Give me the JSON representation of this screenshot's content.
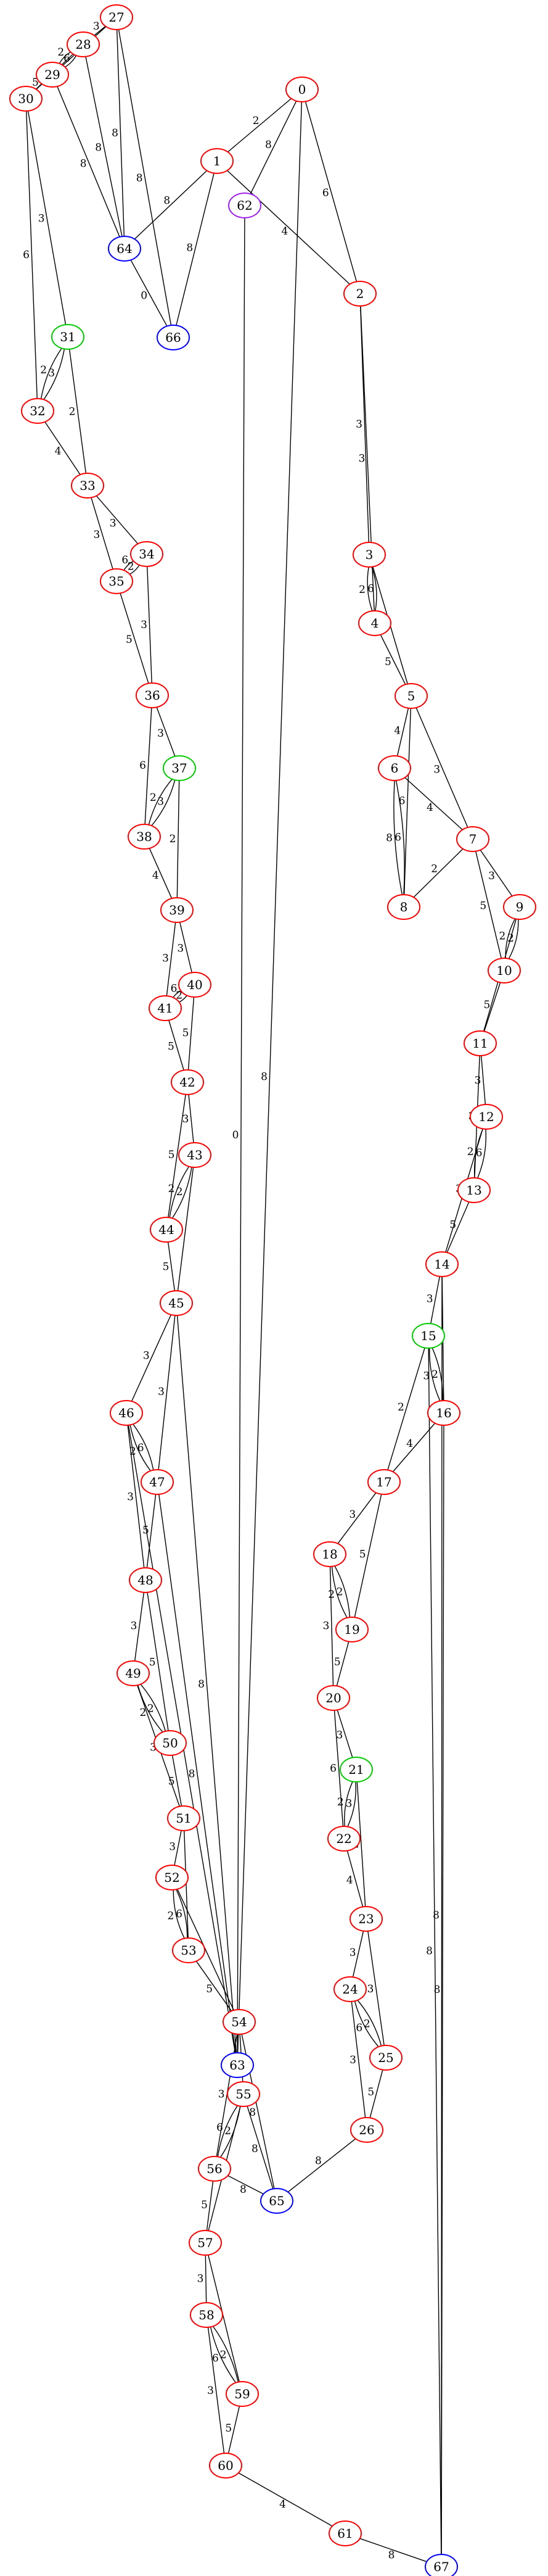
{
  "graph": {
    "colors": {
      "red": "#ff0000",
      "green": "#00cc00",
      "blue": "#0000ff",
      "purple": "#a020f0"
    },
    "nodes": [
      {
        "id": "0",
        "color": "red"
      },
      {
        "id": "1",
        "color": "red"
      },
      {
        "id": "2",
        "color": "red"
      },
      {
        "id": "3",
        "color": "red"
      },
      {
        "id": "4",
        "color": "red"
      },
      {
        "id": "5",
        "color": "red"
      },
      {
        "id": "6",
        "color": "red"
      },
      {
        "id": "7",
        "color": "red"
      },
      {
        "id": "8",
        "color": "red"
      },
      {
        "id": "9",
        "color": "red"
      },
      {
        "id": "10",
        "color": "red"
      },
      {
        "id": "11",
        "color": "red"
      },
      {
        "id": "12",
        "color": "red"
      },
      {
        "id": "13",
        "color": "red"
      },
      {
        "id": "14",
        "color": "red"
      },
      {
        "id": "15",
        "color": "green"
      },
      {
        "id": "16",
        "color": "red"
      },
      {
        "id": "17",
        "color": "red"
      },
      {
        "id": "18",
        "color": "red"
      },
      {
        "id": "19",
        "color": "red"
      },
      {
        "id": "20",
        "color": "red"
      },
      {
        "id": "21",
        "color": "green"
      },
      {
        "id": "22",
        "color": "red"
      },
      {
        "id": "23",
        "color": "red"
      },
      {
        "id": "24",
        "color": "red"
      },
      {
        "id": "25",
        "color": "red"
      },
      {
        "id": "26",
        "color": "red"
      },
      {
        "id": "27",
        "color": "red"
      },
      {
        "id": "28",
        "color": "red"
      },
      {
        "id": "29",
        "color": "red"
      },
      {
        "id": "30",
        "color": "red"
      },
      {
        "id": "31",
        "color": "green"
      },
      {
        "id": "32",
        "color": "red"
      },
      {
        "id": "33",
        "color": "red"
      },
      {
        "id": "34",
        "color": "red"
      },
      {
        "id": "35",
        "color": "red"
      },
      {
        "id": "36",
        "color": "red"
      },
      {
        "id": "37",
        "color": "green"
      },
      {
        "id": "38",
        "color": "red"
      },
      {
        "id": "39",
        "color": "red"
      },
      {
        "id": "40",
        "color": "red"
      },
      {
        "id": "41",
        "color": "red"
      },
      {
        "id": "42",
        "color": "red"
      },
      {
        "id": "43",
        "color": "red"
      },
      {
        "id": "44",
        "color": "red"
      },
      {
        "id": "45",
        "color": "red"
      },
      {
        "id": "46",
        "color": "red"
      },
      {
        "id": "47",
        "color": "red"
      },
      {
        "id": "48",
        "color": "red"
      },
      {
        "id": "49",
        "color": "red"
      },
      {
        "id": "50",
        "color": "red"
      },
      {
        "id": "51",
        "color": "red"
      },
      {
        "id": "52",
        "color": "red"
      },
      {
        "id": "53",
        "color": "red"
      },
      {
        "id": "54",
        "color": "red"
      },
      {
        "id": "55",
        "color": "red"
      },
      {
        "id": "56",
        "color": "red"
      },
      {
        "id": "57",
        "color": "red"
      },
      {
        "id": "58",
        "color": "red"
      },
      {
        "id": "59",
        "color": "red"
      },
      {
        "id": "60",
        "color": "red"
      },
      {
        "id": "61",
        "color": "red"
      },
      {
        "id": "62",
        "color": "purple"
      },
      {
        "id": "63",
        "color": "blue"
      },
      {
        "id": "64",
        "color": "blue"
      },
      {
        "id": "65",
        "color": "blue"
      },
      {
        "id": "66",
        "color": "blue"
      },
      {
        "id": "67",
        "color": "blue"
      }
    ],
    "edges": [
      {
        "from": "0",
        "to": "1",
        "label": "2"
      },
      {
        "from": "0",
        "to": "62",
        "label": "8"
      },
      {
        "from": "0",
        "to": "2",
        "label": "6"
      },
      {
        "from": "0",
        "to": "63",
        "label": "8"
      },
      {
        "from": "1",
        "to": "64",
        "label": "8"
      },
      {
        "from": "1",
        "to": "66",
        "label": "8"
      },
      {
        "from": "1",
        "to": "2",
        "label": "4"
      },
      {
        "from": "62",
        "to": "63",
        "label": "0"
      },
      {
        "from": "2",
        "to": "3",
        "label": "3"
      },
      {
        "from": "2",
        "to": "4",
        "label": "3"
      },
      {
        "from": "3",
        "to": "4",
        "label": "6"
      },
      {
        "from": "3",
        "to": "4",
        "label": "2"
      },
      {
        "from": "3",
        "to": "5",
        "label": "3"
      },
      {
        "from": "4",
        "to": "5",
        "label": "5"
      },
      {
        "from": "5",
        "to": "6",
        "label": "4"
      },
      {
        "from": "5",
        "to": "8",
        "label": "6"
      },
      {
        "from": "5",
        "to": "7",
        "label": "3"
      },
      {
        "from": "6",
        "to": "7",
        "label": "4"
      },
      {
        "from": "6",
        "to": "8",
        "label": "6"
      },
      {
        "from": "6",
        "to": "8",
        "label": "8"
      },
      {
        "from": "7",
        "to": "8",
        "label": "2"
      },
      {
        "from": "7",
        "to": "9",
        "label": "3"
      },
      {
        "from": "7",
        "to": "10",
        "label": "5"
      },
      {
        "from": "9",
        "to": "10",
        "label": "2"
      },
      {
        "from": "9",
        "to": "10",
        "label": "2"
      },
      {
        "from": "9",
        "to": "11",
        "label": "3"
      },
      {
        "from": "10",
        "to": "11",
        "label": "5"
      },
      {
        "from": "11",
        "to": "12",
        "label": "3"
      },
      {
        "from": "11",
        "to": "13",
        "label": "3"
      },
      {
        "from": "12",
        "to": "13",
        "label": "6"
      },
      {
        "from": "12",
        "to": "13",
        "label": "2"
      },
      {
        "from": "12",
        "to": "14",
        "label": "3"
      },
      {
        "from": "13",
        "to": "14",
        "label": "5"
      },
      {
        "from": "14",
        "to": "15",
        "label": "3"
      },
      {
        "from": "14",
        "to": "16",
        "label": "6"
      },
      {
        "from": "14",
        "to": "67",
        "label": "8"
      },
      {
        "from": "15",
        "to": "16",
        "label": "2"
      },
      {
        "from": "15",
        "to": "16",
        "label": "3"
      },
      {
        "from": "15",
        "to": "17",
        "label": "2"
      },
      {
        "from": "15",
        "to": "67",
        "label": "8"
      },
      {
        "from": "16",
        "to": "17",
        "label": "4"
      },
      {
        "from": "16",
        "to": "67",
        "label": "8"
      },
      {
        "from": "17",
        "to": "18",
        "label": "3"
      },
      {
        "from": "17",
        "to": "19",
        "label": "5"
      },
      {
        "from": "18",
        "to": "19",
        "label": "2"
      },
      {
        "from": "18",
        "to": "19",
        "label": "2"
      },
      {
        "from": "18",
        "to": "20",
        "label": "3"
      },
      {
        "from": "19",
        "to": "20",
        "label": "5"
      },
      {
        "from": "20",
        "to": "21",
        "label": "3"
      },
      {
        "from": "20",
        "to": "22",
        "label": "6"
      },
      {
        "from": "21",
        "to": "22",
        "label": "3"
      },
      {
        "from": "21",
        "to": "22",
        "label": "2"
      },
      {
        "from": "21",
        "to": "23",
        "label": "2"
      },
      {
        "from": "22",
        "to": "23",
        "label": "4"
      },
      {
        "from": "23",
        "to": "24",
        "label": "3"
      },
      {
        "from": "23",
        "to": "25",
        "label": "3"
      },
      {
        "from": "24",
        "to": "25",
        "label": "2"
      },
      {
        "from": "24",
        "to": "25",
        "label": "6"
      },
      {
        "from": "24",
        "to": "26",
        "label": "3"
      },
      {
        "from": "25",
        "to": "26",
        "label": "5"
      },
      {
        "from": "26",
        "to": "65",
        "label": "8"
      },
      {
        "from": "27",
        "to": "28",
        "label": "3"
      },
      {
        "from": "27",
        "to": "29",
        "label": "3"
      },
      {
        "from": "27",
        "to": "64",
        "label": "8"
      },
      {
        "from": "27",
        "to": "66",
        "label": "8"
      },
      {
        "from": "28",
        "to": "29",
        "label": "6"
      },
      {
        "from": "28",
        "to": "29",
        "label": "2"
      },
      {
        "from": "28",
        "to": "30",
        "label": "3"
      },
      {
        "from": "28",
        "to": "64",
        "label": "8"
      },
      {
        "from": "29",
        "to": "30",
        "label": "5"
      },
      {
        "from": "29",
        "to": "64",
        "label": "8"
      },
      {
        "from": "64",
        "to": "66",
        "label": "0"
      },
      {
        "from": "30",
        "to": "31",
        "label": "3"
      },
      {
        "from": "30",
        "to": "32",
        "label": "6"
      },
      {
        "from": "31",
        "to": "32",
        "label": "3"
      },
      {
        "from": "31",
        "to": "32",
        "label": "2"
      },
      {
        "from": "31",
        "to": "33",
        "label": "2"
      },
      {
        "from": "32",
        "to": "33",
        "label": "4"
      },
      {
        "from": "33",
        "to": "34",
        "label": "3"
      },
      {
        "from": "33",
        "to": "35",
        "label": "3"
      },
      {
        "from": "34",
        "to": "35",
        "label": "2"
      },
      {
        "from": "34",
        "to": "35",
        "label": "6"
      },
      {
        "from": "34",
        "to": "36",
        "label": "3"
      },
      {
        "from": "35",
        "to": "36",
        "label": "5"
      },
      {
        "from": "36",
        "to": "37",
        "label": "3"
      },
      {
        "from": "36",
        "to": "38",
        "label": "6"
      },
      {
        "from": "37",
        "to": "38",
        "label": "3"
      },
      {
        "from": "37",
        "to": "38",
        "label": "2"
      },
      {
        "from": "37",
        "to": "39",
        "label": "2"
      },
      {
        "from": "38",
        "to": "39",
        "label": "4"
      },
      {
        "from": "39",
        "to": "40",
        "label": "3"
      },
      {
        "from": "39",
        "to": "41",
        "label": "3"
      },
      {
        "from": "40",
        "to": "41",
        "label": "2"
      },
      {
        "from": "40",
        "to": "41",
        "label": "6"
      },
      {
        "from": "40",
        "to": "42",
        "label": "5"
      },
      {
        "from": "41",
        "to": "42",
        "label": "5"
      },
      {
        "from": "42",
        "to": "43",
        "label": "3"
      },
      {
        "from": "42",
        "to": "44",
        "label": "5"
      },
      {
        "from": "43",
        "to": "44",
        "label": "2"
      },
      {
        "from": "43",
        "to": "44",
        "label": "2"
      },
      {
        "from": "43",
        "to": "45",
        "label": "3"
      },
      {
        "from": "44",
        "to": "45",
        "label": "5"
      },
      {
        "from": "45",
        "to": "46",
        "label": "3"
      },
      {
        "from": "45",
        "to": "47",
        "label": "3"
      },
      {
        "from": "45",
        "to": "63",
        "label": "8"
      },
      {
        "from": "46",
        "to": "47",
        "label": "6"
      },
      {
        "from": "46",
        "to": "47",
        "label": "2"
      },
      {
        "from": "46",
        "to": "48",
        "label": "3"
      },
      {
        "from": "46",
        "to": "63",
        "label": "8"
      },
      {
        "from": "47",
        "to": "48",
        "label": "5"
      },
      {
        "from": "47",
        "to": "63",
        "label": "8"
      },
      {
        "from": "48",
        "to": "49",
        "label": "3"
      },
      {
        "from": "48",
        "to": "50",
        "label": "5"
      },
      {
        "from": "49",
        "to": "50",
        "label": "2"
      },
      {
        "from": "49",
        "to": "50",
        "label": "2"
      },
      {
        "from": "49",
        "to": "51",
        "label": "3"
      },
      {
        "from": "50",
        "to": "51",
        "label": "5"
      },
      {
        "from": "51",
        "to": "52",
        "label": "3"
      },
      {
        "from": "51",
        "to": "53",
        "label": "3"
      },
      {
        "from": "52",
        "to": "53",
        "label": "6"
      },
      {
        "from": "52",
        "to": "53",
        "label": "2"
      },
      {
        "from": "52",
        "to": "54",
        "label": "3"
      },
      {
        "from": "53",
        "to": "54",
        "label": "5"
      },
      {
        "from": "54",
        "to": "55",
        "label": "3"
      },
      {
        "from": "54",
        "to": "56",
        "label": "3"
      },
      {
        "from": "54",
        "to": "65",
        "label": "8"
      },
      {
        "from": "55",
        "to": "56",
        "label": "2"
      },
      {
        "from": "55",
        "to": "56",
        "label": "6"
      },
      {
        "from": "55",
        "to": "57",
        "label": "3"
      },
      {
        "from": "55",
        "to": "65",
        "label": "8"
      },
      {
        "from": "56",
        "to": "57",
        "label": "5"
      },
      {
        "from": "56",
        "to": "65",
        "label": "8"
      },
      {
        "from": "57",
        "to": "58",
        "label": "3"
      },
      {
        "from": "57",
        "to": "59",
        "label": "3"
      },
      {
        "from": "58",
        "to": "59",
        "label": "2"
      },
      {
        "from": "58",
        "to": "59",
        "label": "6"
      },
      {
        "from": "58",
        "to": "60",
        "label": "3"
      },
      {
        "from": "59",
        "to": "60",
        "label": "5"
      },
      {
        "from": "60",
        "to": "61",
        "label": "4"
      },
      {
        "from": "61",
        "to": "67",
        "label": "8"
      }
    ]
  }
}
